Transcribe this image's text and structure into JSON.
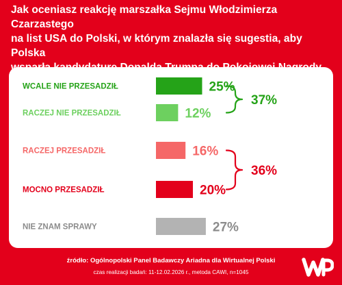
{
  "header": {
    "title_lines": [
      "Jak oceniasz reakcję marszałka Sejmu Włodzimierza Czarzastego",
      "na list USA do Polski, w którym znalazła się sugestia, aby Polska",
      "wsparła kandydaturę Donalda Trumpa do Pokojowej Nagrody Nobla?"
    ]
  },
  "chart_data": {
    "type": "bar",
    "orientation": "horizontal",
    "categories": [
      "WCALE NIE PRZESADZIŁ",
      "RACZEJ NIE PRZESADZIŁ",
      "RACZEJ PRZESADZIŁ",
      "MOCNO PRZESADZIŁ",
      "NIE ZNAM SPRAWY"
    ],
    "values": [
      25,
      12,
      16,
      20,
      27
    ],
    "value_labels": [
      "25%",
      "12%",
      "16%",
      "20%",
      "27%"
    ],
    "colors": [
      "#25a318",
      "#6dd05f",
      "#f56767",
      "#e3001b",
      "#b3b3b3"
    ],
    "label_colors": [
      "#25a318",
      "#6dd05f",
      "#f56767",
      "#e3001b",
      "#8c8c8c"
    ],
    "groups": [
      {
        "members": [
          0,
          1
        ],
        "value": 37,
        "label": "37%",
        "color": "#25a318"
      },
      {
        "members": [
          2,
          3
        ],
        "value": 36,
        "label": "36%",
        "color": "#e3001b"
      }
    ]
  },
  "footer": {
    "source": "źródło: Ogólnopolski Panel Badawczy Ariadna dla Wirtualnej Polski",
    "meta": "czas realizacji badań: 11-12.02.2026 r., metoda CAWI, n=1045"
  },
  "logo": {
    "text": "WP",
    "icon": "wp-logo"
  }
}
